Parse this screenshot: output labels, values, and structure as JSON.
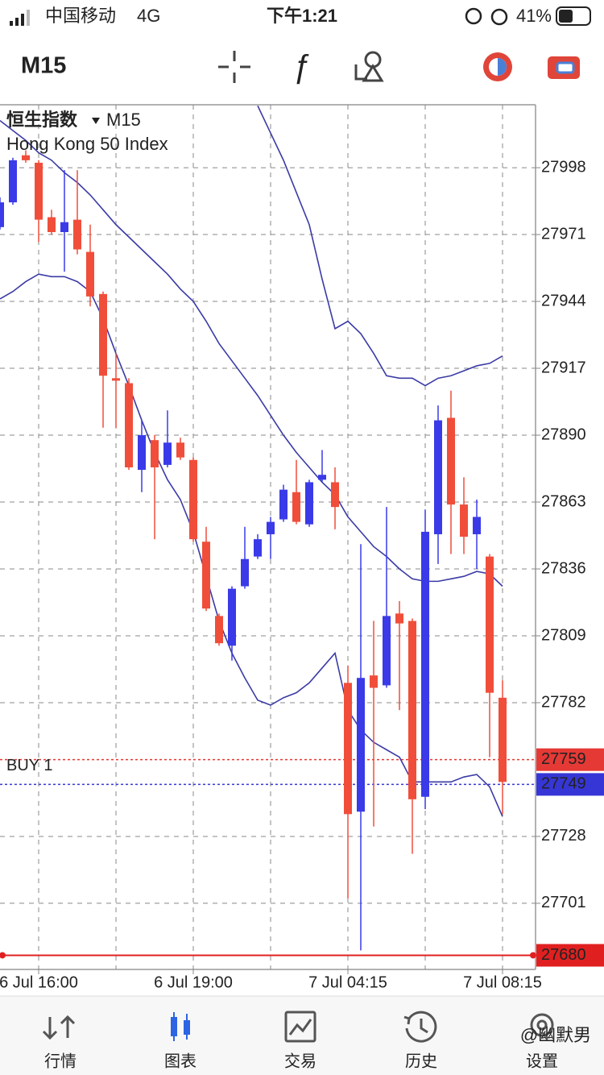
{
  "status_bar": {
    "carrier": "中国移动",
    "network": "4G",
    "time": "下午1:21",
    "battery": "41%"
  },
  "toolbar": {
    "timeframe": "M15"
  },
  "chart_data": {
    "type": "candlestick",
    "title": "恒生指数",
    "timeframe": "M15",
    "subtitle": "Hong Kong 50 Index",
    "categories": [
      null,
      null,
      null,
      "6 Jul 16:00",
      null,
      null,
      null,
      null,
      null,
      null,
      null,
      null,
      null,
      null,
      null,
      "6 Jul 19:00",
      null,
      null,
      null,
      null,
      null,
      null,
      null,
      null,
      null,
      null,
      null,
      "7 Jul 04:15",
      null,
      null,
      null,
      null,
      null,
      null,
      null,
      null,
      null,
      null,
      null,
      "7 Jul 08:15"
    ],
    "open": [
      27974,
      27984,
      28003,
      28000,
      27978,
      27972,
      27977,
      27964,
      27947,
      27913,
      27911,
      27876,
      27888,
      27878,
      27887,
      27880,
      27847,
      27817,
      27805,
      27829,
      27841,
      27850,
      27856,
      27867,
      27854,
      27872,
      27871,
      27790,
      27738,
      27793,
      27789,
      27818,
      27815,
      27744,
      27850,
      27897,
      27862,
      27850,
      27841,
      27784
    ],
    "high": [
      27986,
      28002,
      28005,
      28001,
      27981,
      27997,
      27997,
      27975,
      27948,
      27923,
      27913,
      27896,
      27890,
      27900,
      27889,
      27881,
      27853,
      27818,
      27829,
      27853,
      27850,
      27857,
      27870,
      27880,
      27872,
      27884,
      27877,
      27797,
      27846,
      27815,
      27861,
      27823,
      27816,
      27860,
      27902,
      27908,
      27873,
      27864,
      27842,
      27791
    ],
    "low": [
      27973,
      27983,
      28000,
      27968,
      27971,
      27956,
      27963,
      27942,
      27893,
      27893,
      27876,
      27867,
      27848,
      27877,
      27880,
      27847,
      27819,
      27805,
      27799,
      27828,
      27840,
      27840,
      27855,
      27854,
      27853,
      27871,
      27852,
      27703,
      27682,
      27732,
      27788,
      27779,
      27721,
      27739,
      27838,
      27842,
      27842,
      27836,
      27760,
      27737
    ],
    "close": [
      27984,
      28001,
      28001,
      27977,
      27972,
      27976,
      27965,
      27946,
      27914,
      27912,
      27877,
      27890,
      27877,
      27887,
      27881,
      27848,
      27820,
      27806,
      27828,
      27840,
      27848,
      27855,
      27868,
      27855,
      27871,
      27874,
      27861,
      27737,
      27792,
      27788,
      27817,
      27814,
      27743,
      27851,
      27896,
      27862,
      27849,
      27857,
      27786,
      27750
    ],
    "up_color": "#3a3ae8",
    "down_color": "#f04e3a",
    "lines": [
      {
        "color": "#3b3ba6",
        "values": [
          null,
          null,
          null,
          null,
          null,
          null,
          null,
          null,
          null,
          null,
          null,
          null,
          null,
          null,
          null,
          null,
          null,
          null,
          null,
          null,
          28023,
          28012,
          28001,
          27988,
          27975,
          27953,
          27933,
          27936,
          27931,
          27923,
          27914,
          27913,
          27913,
          27910,
          27913,
          27914,
          27916,
          27918,
          27919,
          27922
        ]
      },
      {
        "color": "#3b3ba6",
        "values": [
          28017,
          28013,
          28009,
          28004,
          28001,
          27996,
          27992,
          27987,
          27981,
          27975,
          27970,
          27965,
          27960,
          27955,
          27949,
          27944,
          27936,
          27927,
          27920,
          27913,
          27906,
          27898,
          27890,
          27883,
          27877,
          27871,
          27866,
          27857,
          27851,
          27845,
          27841,
          27836,
          27832,
          27831,
          27831,
          27832,
          27833,
          27835,
          27834,
          27829
        ]
      },
      {
        "color": "#3b3ba6",
        "values": [
          27945,
          27948,
          27952,
          27955,
          27954,
          27954,
          27952,
          27948,
          27937,
          27923,
          27910,
          27896,
          27883,
          27872,
          27864,
          27851,
          27833,
          27815,
          27802,
          27792,
          27783,
          27781,
          27784,
          27786,
          27790,
          27796,
          27802,
          27779,
          27771,
          27766,
          27763,
          27760,
          27750,
          27750,
          27750,
          27750,
          27752,
          27753,
          27748,
          27736
        ]
      }
    ],
    "price_lines": [
      {
        "label": "BUY 1",
        "value": 27759,
        "color": "#e53935",
        "dashed": true
      },
      {
        "value": 27749,
        "color": "#3636d6",
        "dashed": true
      },
      {
        "value": 27680,
        "color": "#e02020",
        "dashed": false
      }
    ],
    "ylim": [
      27674.3,
      28023.4
    ],
    "yticks": [
      27998,
      27971,
      27944,
      27917,
      27890,
      27863,
      27836,
      27809,
      27782,
      27728,
      27701
    ],
    "grid": true
  },
  "watermark": "@幽默男",
  "tab_bar": {
    "tabs": [
      "行情",
      "图表",
      "交易",
      "历史",
      "设置"
    ]
  }
}
